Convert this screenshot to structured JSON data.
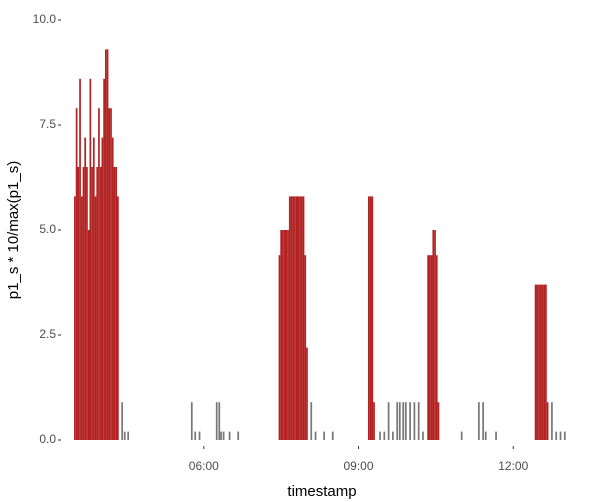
{
  "chart_data": {
    "type": "bar",
    "x_label": "timestamp",
    "y_label": "p1_s * 10/max(p1_s)",
    "xlim": [
      "03:15",
      "13:20"
    ],
    "xticks": [
      "06:00",
      "09:00",
      "12:00"
    ],
    "ylim": [
      0,
      10
    ],
    "yticks": [
      {
        "value": 0,
        "label": "0.0"
      },
      2.5,
      {
        "value": 5,
        "label": "5.0"
      },
      7.5,
      {
        "value": 10,
        "label": "10.0"
      }
    ],
    "grid": false,
    "series": [
      {
        "color": "#b22222",
        "x": [
          "03:30",
          "03:32",
          "03:34",
          "03:36",
          "03:38",
          "03:40",
          "03:42",
          "03:44",
          "03:46",
          "03:48",
          "03:50",
          "03:52",
          "03:54",
          "03:56",
          "03:58",
          "04:00",
          "04:02",
          "04:04",
          "04:06",
          "04:08",
          "04:10",
          "04:12",
          "04:14",
          "04:16",
          "04:18",
          "04:20",
          "07:28",
          "07:30",
          "07:32",
          "07:34",
          "07:36",
          "07:38",
          "07:40",
          "07:42",
          "07:44",
          "07:46",
          "07:48",
          "07:50",
          "07:52",
          "07:54",
          "07:56",
          "07:58",
          "08:00",
          "09:12",
          "09:14",
          "09:16",
          "09:18",
          "10:21",
          "10:23",
          "10:25",
          "10:27",
          "10:29",
          "10:31",
          "10:33",
          "12:26",
          "12:28",
          "12:30",
          "12:32",
          "12:34",
          "12:36",
          "12:38",
          "12:40"
        ],
        "values": [
          5.8,
          7.9,
          6.5,
          8.6,
          5.8,
          6.5,
          7.2,
          6.5,
          5.0,
          8.6,
          6.5,
          7.2,
          5.8,
          6.5,
          7.9,
          6.5,
          7.2,
          8.6,
          9.3,
          9.3,
          7.9,
          7.9,
          7.2,
          6.5,
          6.5,
          5.8,
          4.4,
          5.0,
          5.0,
          5.0,
          5.0,
          5.0,
          5.8,
          5.8,
          5.8,
          5.8,
          5.8,
          5.8,
          5.8,
          5.8,
          5.8,
          4.4,
          2.2,
          5.8,
          5.8,
          5.8,
          0.9,
          4.4,
          4.4,
          4.4,
          5.0,
          5.0,
          4.4,
          0.9,
          3.7,
          3.7,
          3.7,
          3.7,
          3.7,
          3.7,
          3.7,
          0.9
        ]
      },
      {
        "color": "#777777",
        "x": [
          "04:25",
          "04:28",
          "04:32",
          "05:46",
          "05:50",
          "05:55",
          "06:15",
          "06:18",
          "06:20",
          "06:23",
          "06:30",
          "06:40",
          "08:05",
          "08:10",
          "08:20",
          "08:30",
          "09:25",
          "09:30",
          "09:35",
          "09:40",
          "09:45",
          "09:48",
          "09:52",
          "09:55",
          "10:00",
          "10:05",
          "10:10",
          "10:15",
          "11:00",
          "11:20",
          "11:25",
          "11:28",
          "11:40",
          "12:45",
          "12:50",
          "12:55",
          "13:00"
        ],
        "values": [
          0.9,
          0.2,
          0.2,
          0.9,
          0.2,
          0.2,
          0.9,
          0.9,
          0.2,
          0.2,
          0.2,
          0.2,
          0.9,
          0.2,
          0.2,
          0.2,
          0.2,
          0.2,
          0.9,
          0.2,
          0.9,
          0.9,
          0.9,
          0.9,
          0.9,
          0.9,
          0.9,
          0.2,
          0.2,
          0.9,
          0.9,
          0.2,
          0.2,
          0.9,
          0.2,
          0.2,
          0.2
        ]
      }
    ]
  }
}
